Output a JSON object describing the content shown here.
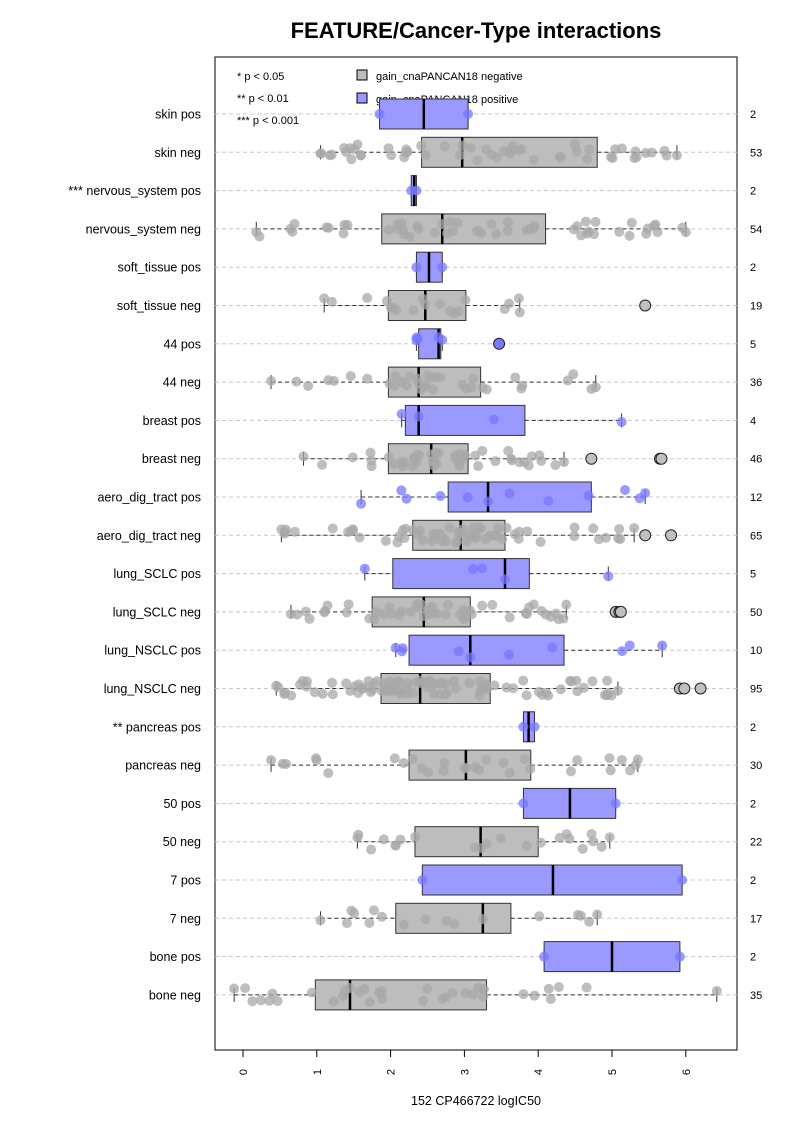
{
  "chart_data": {
    "type": "boxplot",
    "title": "FEATURE/Cancer-Type interactions",
    "xlabel": "152 CP466722 logIC50",
    "xlim": [
      -0.4,
      6.7
    ],
    "x_ticks": [
      "0",
      "1",
      "2",
      "3",
      "4",
      "5",
      "6"
    ],
    "legend": {
      "position": "top",
      "significance": [
        "* p < 0.05",
        "** p < 0.01",
        "*** p < 0.001"
      ],
      "entries": [
        {
          "label": "gain_cnaPANCAN18 negative",
          "color": "#bdbdbd"
        },
        {
          "label": "gain_cnaPANCAN18 positive",
          "color": "#9999ff"
        }
      ]
    },
    "colors": {
      "negative": "#bdbdbd",
      "positive": "#9999ff",
      "neg_point": "#a8a8a8",
      "pos_point": "#7777ff"
    },
    "groups": [
      {
        "label": "skin pos",
        "type": "pos",
        "n": "2",
        "min": 1.85,
        "q1": 1.85,
        "median": 2.45,
        "q3": 3.05,
        "max": 3.05,
        "outliers": []
      },
      {
        "label": "skin neg",
        "type": "neg",
        "n": "53",
        "min": 1.05,
        "q1": 2.42,
        "median": 2.97,
        "q3": 4.8,
        "max": 5.88,
        "outliers": []
      },
      {
        "label": "*** nervous_system pos",
        "type": "pos",
        "n": "2",
        "min": 2.28,
        "q1": 2.28,
        "median": 2.32,
        "q3": 2.35,
        "max": 2.35,
        "outliers": []
      },
      {
        "label": "nervous_system neg",
        "type": "neg",
        "n": "54",
        "min": 0.18,
        "q1": 1.88,
        "median": 2.7,
        "q3": 4.1,
        "max": 6.0,
        "outliers": []
      },
      {
        "label": "soft_tissue pos",
        "type": "pos",
        "n": "2",
        "min": 2.35,
        "q1": 2.35,
        "median": 2.52,
        "q3": 2.7,
        "max": 2.7,
        "outliers": []
      },
      {
        "label": "soft_tissue neg",
        "type": "neg",
        "n": "19",
        "min": 1.1,
        "q1": 1.97,
        "median": 2.47,
        "q3": 3.02,
        "max": 3.75,
        "outliers": [
          5.45
        ]
      },
      {
        "label": "44 pos",
        "type": "pos",
        "n": "5",
        "min": 2.35,
        "q1": 2.38,
        "median": 2.65,
        "q3": 2.68,
        "max": 2.7,
        "outliers": [
          3.47
        ]
      },
      {
        "label": "44 neg",
        "type": "neg",
        "n": "36",
        "min": 0.38,
        "q1": 1.97,
        "median": 2.38,
        "q3": 3.22,
        "max": 4.78,
        "outliers": []
      },
      {
        "label": "breast pos",
        "type": "pos",
        "n": "4",
        "min": 2.15,
        "q1": 2.2,
        "median": 2.38,
        "q3": 3.82,
        "max": 5.13,
        "outliers": []
      },
      {
        "label": "breast neg",
        "type": "neg",
        "n": "46",
        "min": 0.82,
        "q1": 1.97,
        "median": 2.55,
        "q3": 3.05,
        "max": 4.35,
        "outliers": [
          4.72,
          5.65,
          5.67
        ]
      },
      {
        "label": "aero_dig_tract pos",
        "type": "pos",
        "n": "12",
        "min": 1.6,
        "q1": 2.78,
        "median": 3.32,
        "q3": 4.72,
        "max": 5.45,
        "outliers": []
      },
      {
        "label": "aero_dig_tract neg",
        "type": "neg",
        "n": "65",
        "min": 0.52,
        "q1": 2.3,
        "median": 2.95,
        "q3": 3.55,
        "max": 5.3,
        "outliers": [
          5.45,
          5.8
        ]
      },
      {
        "label": "lung_SCLC pos",
        "type": "pos",
        "n": "5",
        "min": 1.65,
        "q1": 2.03,
        "median": 3.55,
        "q3": 3.88,
        "max": 4.95,
        "outliers": []
      },
      {
        "label": "lung_SCLC neg",
        "type": "neg",
        "n": "50",
        "min": 0.65,
        "q1": 1.75,
        "median": 2.45,
        "q3": 3.08,
        "max": 4.38,
        "outliers": [
          5.05,
          5.1,
          5.12
        ]
      },
      {
        "label": "lung_NSCLC pos",
        "type": "pos",
        "n": "10",
        "min": 2.07,
        "q1": 2.25,
        "median": 3.08,
        "q3": 4.35,
        "max": 5.68,
        "outliers": []
      },
      {
        "label": "lung_NSCLC neg",
        "type": "neg",
        "n": "95",
        "min": 0.45,
        "q1": 1.87,
        "median": 2.4,
        "q3": 3.35,
        "max": 5.08,
        "outliers": [
          5.92,
          5.98,
          6.2
        ]
      },
      {
        "label": "** pancreas pos",
        "type": "pos",
        "n": "2",
        "min": 3.8,
        "q1": 3.8,
        "median": 3.87,
        "q3": 3.95,
        "max": 3.95,
        "outliers": []
      },
      {
        "label": "pancreas neg",
        "type": "neg",
        "n": "30",
        "min": 0.38,
        "q1": 2.25,
        "median": 3.02,
        "q3": 3.9,
        "max": 5.35,
        "outliers": []
      },
      {
        "label": "50 pos",
        "type": "pos",
        "n": "2",
        "min": 3.8,
        "q1": 3.8,
        "median": 4.43,
        "q3": 5.05,
        "max": 5.05,
        "outliers": []
      },
      {
        "label": "50 neg",
        "type": "neg",
        "n": "22",
        "min": 1.55,
        "q1": 2.33,
        "median": 3.22,
        "q3": 4.0,
        "max": 4.97,
        "outliers": []
      },
      {
        "label": "7 pos",
        "type": "pos",
        "n": "2",
        "min": 2.43,
        "q1": 2.43,
        "median": 4.2,
        "q3": 5.95,
        "max": 5.95,
        "outliers": []
      },
      {
        "label": "7 neg",
        "type": "neg",
        "n": "17",
        "min": 1.05,
        "q1": 2.07,
        "median": 3.25,
        "q3": 3.63,
        "max": 4.8,
        "outliers": []
      },
      {
        "label": "bone pos",
        "type": "pos",
        "n": "2",
        "min": 4.08,
        "q1": 4.08,
        "median": 5.0,
        "q3": 5.92,
        "max": 5.92,
        "outliers": []
      },
      {
        "label": "bone neg",
        "type": "neg",
        "n": "35",
        "min": -0.12,
        "q1": 0.98,
        "median": 1.45,
        "q3": 3.3,
        "max": 6.42,
        "outliers": []
      }
    ]
  }
}
